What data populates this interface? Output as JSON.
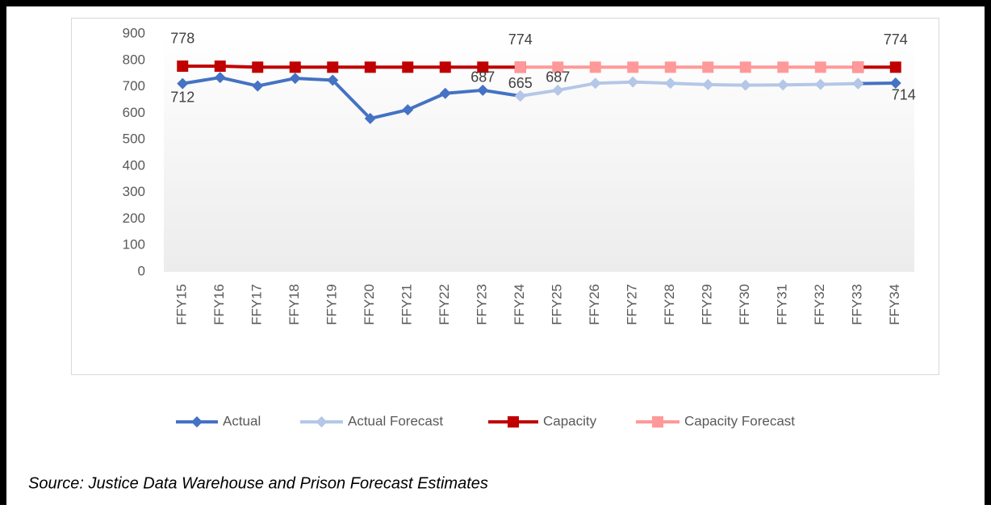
{
  "chart_data": {
    "type": "line",
    "categories": [
      "FFY15",
      "FFY16",
      "FFY17",
      "FFY18",
      "FFY19",
      "FFY20",
      "FFY21",
      "FFY22",
      "FFY23",
      "FFY24",
      "FFY25",
      "FFY26",
      "FFY27",
      "FFY28",
      "FFY29",
      "FFY30",
      "FFY31",
      "FFY32",
      "FFY33",
      "FFY34"
    ],
    "series": [
      {
        "name": "Actual",
        "color": "#4472c4",
        "marker": "diamond",
        "values": [
          712,
          735,
          703,
          732,
          725,
          580,
          613,
          675,
          687,
          665,
          null,
          null,
          null,
          null,
          null,
          null,
          null,
          null,
          712,
          714
        ],
        "value_labels": [
          "712",
          null,
          null,
          null,
          null,
          null,
          null,
          null,
          "687",
          "665",
          null,
          null,
          null,
          null,
          null,
          null,
          null,
          null,
          null,
          "714"
        ]
      },
      {
        "name": "Actual Forecast",
        "color": "#b4c7e7",
        "marker": "diamond",
        "values": [
          null,
          null,
          null,
          null,
          null,
          null,
          null,
          null,
          null,
          665,
          687,
          713,
          718,
          713,
          708,
          706,
          707,
          709,
          712,
          null
        ],
        "value_labels": [
          null,
          null,
          null,
          null,
          null,
          null,
          null,
          null,
          null,
          null,
          "687",
          null,
          null,
          null,
          null,
          null,
          null,
          null,
          null,
          null
        ]
      },
      {
        "name": "Capacity",
        "color": "#c00000",
        "marker": "square",
        "values": [
          778,
          778,
          774,
          774,
          774,
          774,
          774,
          774,
          774,
          774,
          null,
          null,
          null,
          null,
          null,
          null,
          null,
          null,
          774,
          774
        ],
        "value_labels": [
          "778",
          null,
          null,
          null,
          null,
          null,
          null,
          null,
          null,
          "774",
          null,
          null,
          null,
          null,
          null,
          null,
          null,
          null,
          null,
          "774"
        ]
      },
      {
        "name": "Capacity Forecast",
        "color": "#ff9999",
        "marker": "square",
        "values": [
          null,
          null,
          null,
          null,
          null,
          null,
          null,
          null,
          null,
          774,
          774,
          774,
          774,
          774,
          774,
          774,
          774,
          774,
          774,
          null
        ]
      }
    ],
    "ylim": [
      0,
      900
    ],
    "yticks": [
      0,
      100,
      200,
      300,
      400,
      500,
      600,
      700,
      800,
      900
    ],
    "grid": false,
    "legend": "bottom",
    "source": "Source: Justice Data Warehouse and Prison Forecast Estimates"
  }
}
